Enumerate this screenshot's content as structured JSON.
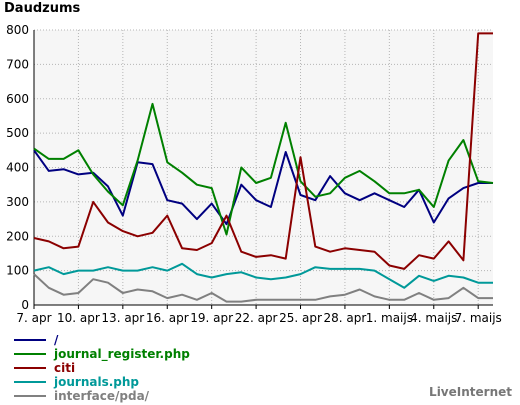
{
  "chart_data": {
    "type": "line",
    "title": "Daudzums",
    "ylim": [
      0,
      800
    ],
    "yticks": [
      0,
      100,
      200,
      300,
      400,
      500,
      600,
      700,
      800
    ],
    "grid": true,
    "legend_position": "bottom",
    "x": [
      "7. apr",
      "8. apr",
      "9. apr",
      "10. apr",
      "11. apr",
      "12. apr",
      "13. apr",
      "14. apr",
      "15. apr",
      "16. apr",
      "17. apr",
      "18. apr",
      "19. apr",
      "20. apr",
      "21. apr",
      "22. apr",
      "23. apr",
      "24. apr",
      "25. apr",
      "26. apr",
      "27. apr",
      "28. apr",
      "29. apr",
      "30. apr",
      "1. maijs",
      "2. maijs",
      "3. maijs",
      "4. maijs",
      "5. maijs",
      "6. maijs",
      "7. maijs",
      "8. maijs"
    ],
    "xtick_labels": [
      {
        "index": 0,
        "label": "7. apr"
      },
      {
        "index": 3,
        "label": "10. apr"
      },
      {
        "index": 6,
        "label": "13. apr"
      },
      {
        "index": 9,
        "label": "16. apr"
      },
      {
        "index": 12,
        "label": "19. apr"
      },
      {
        "index": 15,
        "label": "22. apr"
      },
      {
        "index": 18,
        "label": "25. apr"
      },
      {
        "index": 21,
        "label": "28. apr"
      },
      {
        "index": 24,
        "label": "1. maijs"
      },
      {
        "index": 27,
        "label": "4. maijs"
      },
      {
        "index": 30,
        "label": "7. maijs"
      }
    ],
    "series": [
      {
        "name": "/",
        "color": "#000080",
        "values": [
          450,
          390,
          395,
          380,
          385,
          345,
          260,
          415,
          410,
          305,
          295,
          250,
          295,
          235,
          350,
          305,
          285,
          445,
          320,
          305,
          375,
          325,
          305,
          325,
          305,
          285,
          335,
          240,
          310,
          340,
          355,
          355
        ]
      },
      {
        "name": "journal_register.php",
        "color": "#008000",
        "values": [
          455,
          425,
          425,
          450,
          380,
          330,
          290,
          420,
          585,
          415,
          385,
          350,
          340,
          205,
          400,
          355,
          370,
          530,
          360,
          315,
          325,
          370,
          390,
          360,
          325,
          325,
          335,
          285,
          420,
          480,
          360,
          355
        ]
      },
      {
        "name": "citi",
        "color": "#8b0000",
        "values": [
          195,
          185,
          165,
          170,
          300,
          240,
          215,
          200,
          210,
          260,
          165,
          160,
          180,
          260,
          155,
          140,
          145,
          135,
          430,
          170,
          155,
          165,
          160,
          155,
          115,
          105,
          145,
          135,
          185,
          130,
          790,
          790
        ]
      },
      {
        "name": "journals.php",
        "color": "#009999",
        "values": [
          100,
          110,
          90,
          100,
          100,
          110,
          100,
          100,
          110,
          100,
          120,
          90,
          80,
          90,
          95,
          80,
          75,
          80,
          90,
          110,
          105,
          105,
          105,
          100,
          75,
          50,
          85,
          70,
          85,
          80,
          65,
          65
        ]
      },
      {
        "name": "interface/pda/",
        "color": "#808080",
        "values": [
          90,
          50,
          30,
          35,
          75,
          65,
          35,
          45,
          40,
          20,
          30,
          15,
          35,
          10,
          10,
          15,
          15,
          15,
          15,
          15,
          25,
          30,
          45,
          25,
          15,
          15,
          35,
          15,
          20,
          50,
          20,
          20
        ]
      }
    ]
  },
  "legend": [
    {
      "label": "/",
      "color": "#000080"
    },
    {
      "label": "journal_register.php",
      "color": "#008000"
    },
    {
      "label": "citi",
      "color": "#8b0000"
    },
    {
      "label": "journals.php",
      "color": "#009999"
    },
    {
      "label": "interface/pda/",
      "color": "#808080"
    }
  ],
  "brand": "LiveInternet"
}
